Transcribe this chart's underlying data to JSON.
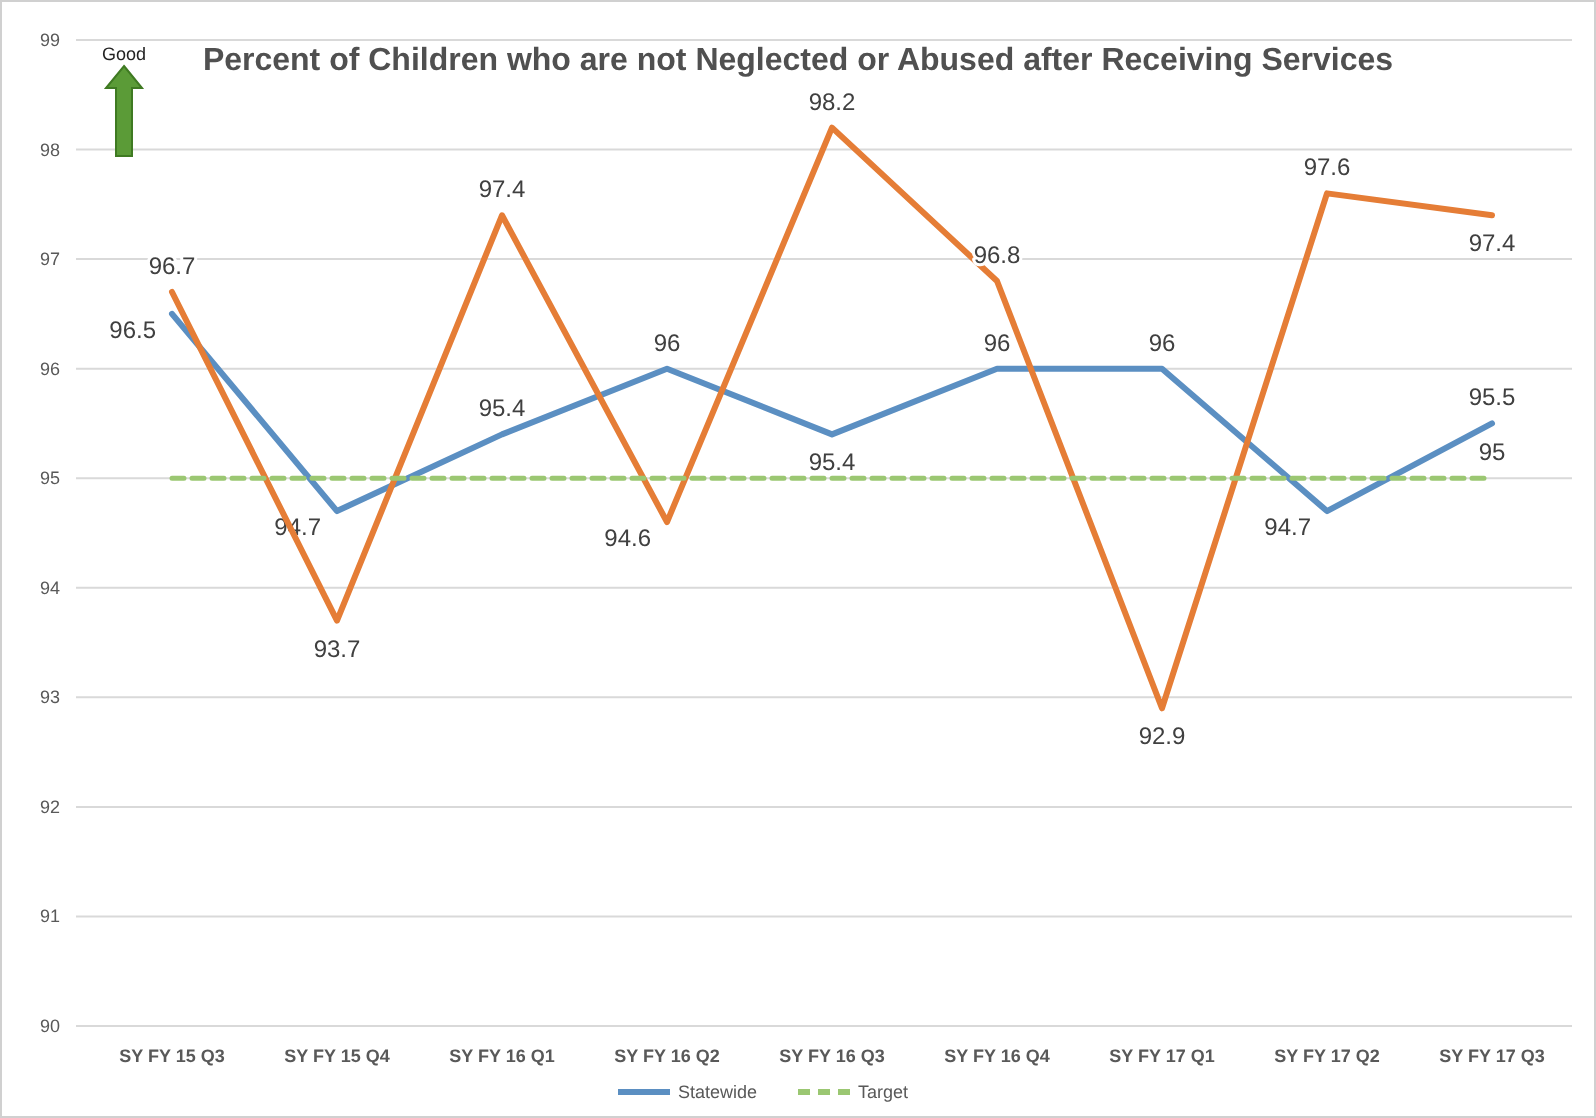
{
  "chart_data": {
    "type": "line",
    "title": "Percent of Children who are not Neglected or Abused after Receiving Services",
    "categories": [
      "SY FY 15 Q3",
      "SY FY 15 Q4",
      "SY FY 16 Q1",
      "SY FY 16 Q2",
      "SY FY 16 Q3",
      "SY FY 16 Q4",
      "SY FY 17 Q1",
      "SY FY 17 Q2",
      "SY FY 17 Q3"
    ],
    "series": [
      {
        "name": "Statewide",
        "color": "#5b8fc2",
        "values": [
          96.5,
          94.7,
          95.4,
          96,
          95.4,
          96,
          96,
          94.7,
          95.5
        ],
        "value_labels": [
          "96.5",
          "94.7",
          "95.4",
          "96",
          "95.4",
          "96",
          "96",
          "94.7",
          "95.5"
        ]
      },
      {
        "color": "#e57d36",
        "values": [
          96.7,
          93.7,
          97.4,
          94.6,
          98.2,
          96.8,
          92.9,
          97.6,
          97.4
        ],
        "value_labels": [
          "96.7",
          "93.7",
          "97.4",
          "94.6",
          "98.2",
          "96.8",
          "92.9",
          "97.6",
          "97.4"
        ]
      },
      {
        "name": "Target",
        "color": "#9bc772",
        "line_style": "dashed",
        "values": [
          95,
          95,
          95,
          95,
          95,
          95,
          95,
          95,
          95
        ],
        "value_labels": [
          null,
          null,
          null,
          null,
          null,
          null,
          null,
          null,
          "95"
        ]
      }
    ],
    "ylim": [
      90,
      99
    ],
    "yticks": [
      90,
      91,
      92,
      93,
      94,
      95,
      96,
      97,
      98,
      99
    ],
    "grid": "y",
    "legend": "bottom",
    "marker": "none",
    "annotations": [
      "Good"
    ]
  }
}
